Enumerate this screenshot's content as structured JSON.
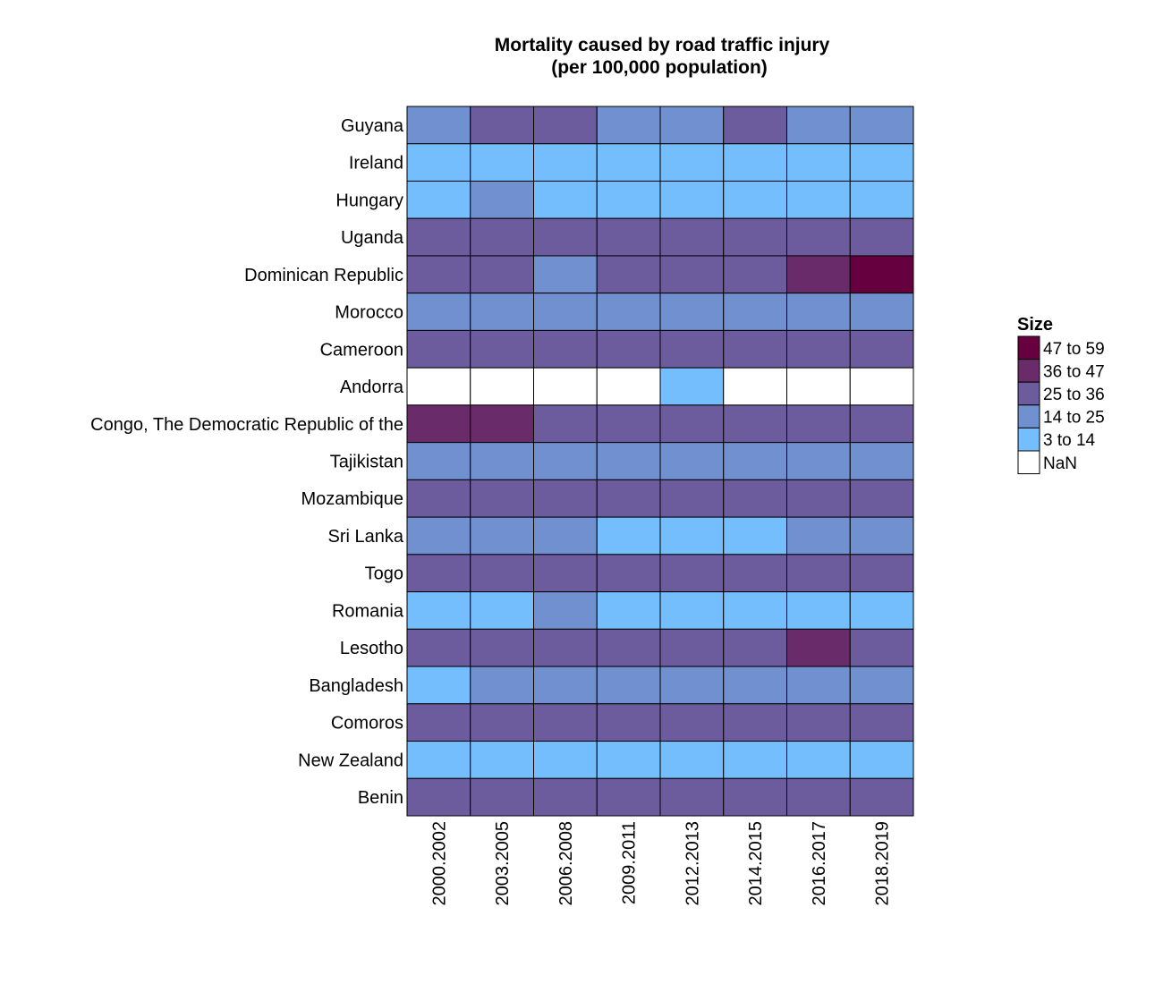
{
  "chart_data": {
    "type": "heatmap",
    "title": "Mortality caused by road traffic injury",
    "subtitle": "(per 100,000 population)",
    "legend_title": "Size",
    "legend_position": "right",
    "grid": false,
    "categories": [
      "2000.2002",
      "2003.2005",
      "2006.2008",
      "2009.2011",
      "2012.2013",
      "2014.2015",
      "2016.2017",
      "2018.2019"
    ],
    "rows": [
      "Guyana",
      "Ireland",
      "Hungary",
      "Uganda",
      "Dominican Republic",
      "Morocco",
      "Cameroon",
      "Andorra",
      "Congo, The Democratic Republic of the",
      "Tajikistan",
      "Mozambique",
      "Sri Lanka",
      "Togo",
      "Romania",
      "Lesotho",
      "Bangladesh",
      "Comoros",
      "New Zealand",
      "Benin"
    ],
    "bins": [
      {
        "label": "47 to 59",
        "color": "#67003F"
      },
      {
        "label": "36 to 47",
        "color": "#6A2B6A"
      },
      {
        "label": "25 to 36",
        "color": "#6C5C9E"
      },
      {
        "label": "14 to 25",
        "color": "#7190D0"
      },
      {
        "label": "3 to 14",
        "color": "#74BEFD"
      },
      {
        "label": "NaN",
        "color": "#FFFFFF"
      }
    ],
    "values": [
      [
        "14 to 25",
        "25 to 36",
        "25 to 36",
        "14 to 25",
        "14 to 25",
        "25 to 36",
        "14 to 25",
        "14 to 25"
      ],
      [
        "3 to 14",
        "3 to 14",
        "3 to 14",
        "3 to 14",
        "3 to 14",
        "3 to 14",
        "3 to 14",
        "3 to 14"
      ],
      [
        "3 to 14",
        "14 to 25",
        "3 to 14",
        "3 to 14",
        "3 to 14",
        "3 to 14",
        "3 to 14",
        "3 to 14"
      ],
      [
        "25 to 36",
        "25 to 36",
        "25 to 36",
        "25 to 36",
        "25 to 36",
        "25 to 36",
        "25 to 36",
        "25 to 36"
      ],
      [
        "25 to 36",
        "25 to 36",
        "14 to 25",
        "25 to 36",
        "25 to 36",
        "25 to 36",
        "36 to 47",
        "47 to 59"
      ],
      [
        "14 to 25",
        "14 to 25",
        "14 to 25",
        "14 to 25",
        "14 to 25",
        "14 to 25",
        "14 to 25",
        "14 to 25"
      ],
      [
        "25 to 36",
        "25 to 36",
        "25 to 36",
        "25 to 36",
        "25 to 36",
        "25 to 36",
        "25 to 36",
        "25 to 36"
      ],
      [
        "NaN",
        "NaN",
        "NaN",
        "NaN",
        "3 to 14",
        "NaN",
        "NaN",
        "NaN"
      ],
      [
        "36 to 47",
        "36 to 47",
        "25 to 36",
        "25 to 36",
        "25 to 36",
        "25 to 36",
        "25 to 36",
        "25 to 36"
      ],
      [
        "14 to 25",
        "14 to 25",
        "14 to 25",
        "14 to 25",
        "14 to 25",
        "14 to 25",
        "14 to 25",
        "14 to 25"
      ],
      [
        "25 to 36",
        "25 to 36",
        "25 to 36",
        "25 to 36",
        "25 to 36",
        "25 to 36",
        "25 to 36",
        "25 to 36"
      ],
      [
        "14 to 25",
        "14 to 25",
        "14 to 25",
        "3 to 14",
        "3 to 14",
        "3 to 14",
        "14 to 25",
        "14 to 25"
      ],
      [
        "25 to 36",
        "25 to 36",
        "25 to 36",
        "25 to 36",
        "25 to 36",
        "25 to 36",
        "25 to 36",
        "25 to 36"
      ],
      [
        "3 to 14",
        "3 to 14",
        "14 to 25",
        "3 to 14",
        "3 to 14",
        "3 to 14",
        "3 to 14",
        "3 to 14"
      ],
      [
        "25 to 36",
        "25 to 36",
        "25 to 36",
        "25 to 36",
        "25 to 36",
        "25 to 36",
        "36 to 47",
        "25 to 36"
      ],
      [
        "3 to 14",
        "14 to 25",
        "14 to 25",
        "14 to 25",
        "14 to 25",
        "14 to 25",
        "14 to 25",
        "14 to 25"
      ],
      [
        "25 to 36",
        "25 to 36",
        "25 to 36",
        "25 to 36",
        "25 to 36",
        "25 to 36",
        "25 to 36",
        "25 to 36"
      ],
      [
        "3 to 14",
        "3 to 14",
        "3 to 14",
        "3 to 14",
        "3 to 14",
        "3 to 14",
        "3 to 14",
        "3 to 14"
      ],
      [
        "25 to 36",
        "25 to 36",
        "25 to 36",
        "25 to 36",
        "25 to 36",
        "25 to 36",
        "25 to 36",
        "25 to 36"
      ]
    ]
  }
}
